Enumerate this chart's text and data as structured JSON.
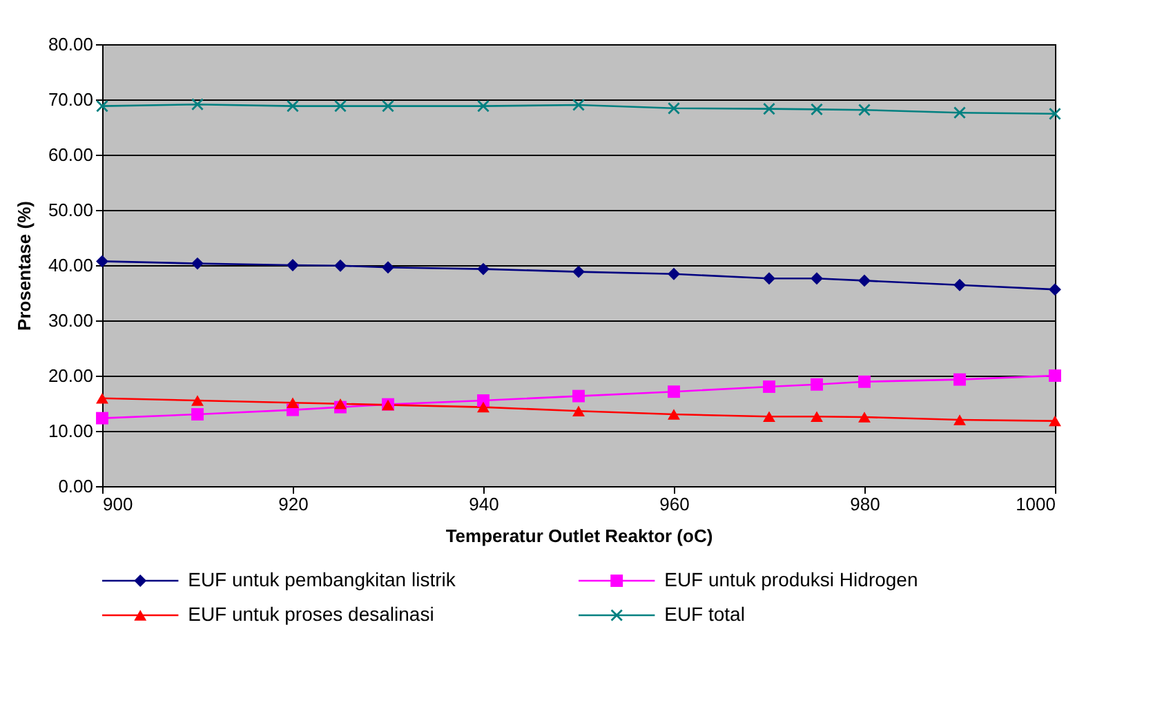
{
  "chart_data": {
    "type": "line",
    "xlabel": "Temperatur Outlet Reaktor (oC)",
    "ylabel": "Prosentase (%)",
    "x": [
      900,
      910,
      920,
      925,
      930,
      940,
      950,
      960,
      970,
      975,
      980,
      990,
      1000
    ],
    "xlim": [
      900,
      1000
    ],
    "xticks": [
      900,
      920,
      940,
      960,
      980,
      1000
    ],
    "ylim": [
      0,
      80
    ],
    "yticks": [
      {
        "value": 0,
        "label": "0.00"
      },
      {
        "value": 10,
        "label": "10.00"
      },
      {
        "value": 20,
        "label": "20.00"
      },
      {
        "value": 30,
        "label": "30.00"
      },
      {
        "value": 40,
        "label": "40.00"
      },
      {
        "value": 50,
        "label": "50.00"
      },
      {
        "value": 60,
        "label": "60.00"
      },
      {
        "value": 70,
        "label": "70.00"
      },
      {
        "value": 80,
        "label": "80.00"
      }
    ],
    "grid": "y",
    "legend": "bottom",
    "line_style": "solid",
    "series": [
      {
        "name": "EUF untuk pembangkitan listrik",
        "color": "#000080",
        "marker": "diamond",
        "values": [
          40.7,
          40.3,
          40.0,
          39.9,
          39.6,
          39.3,
          38.8,
          38.4,
          37.6,
          37.6,
          37.2,
          36.4,
          35.6
        ]
      },
      {
        "name": "EUF untuk produksi Hidrogen",
        "color": "#ff00ff",
        "marker": "square",
        "values": [
          12.3,
          13.0,
          13.8,
          14.3,
          14.8,
          15.5,
          16.3,
          17.1,
          18.0,
          18.4,
          18.9,
          19.3,
          20.0
        ]
      },
      {
        "name": "EUF untuk proses desalinasi",
        "color": "#ff0000",
        "marker": "triangle",
        "values": [
          15.9,
          15.5,
          15.1,
          14.9,
          14.7,
          14.3,
          13.6,
          13.0,
          12.6,
          12.6,
          12.5,
          12.0,
          11.8
        ]
      },
      {
        "name": "EUF total",
        "color": "#008080",
        "marker": "cross",
        "values": [
          68.8,
          69.1,
          68.8,
          68.8,
          68.8,
          68.8,
          69.0,
          68.4,
          68.3,
          68.2,
          68.1,
          67.6,
          67.4
        ]
      }
    ]
  }
}
